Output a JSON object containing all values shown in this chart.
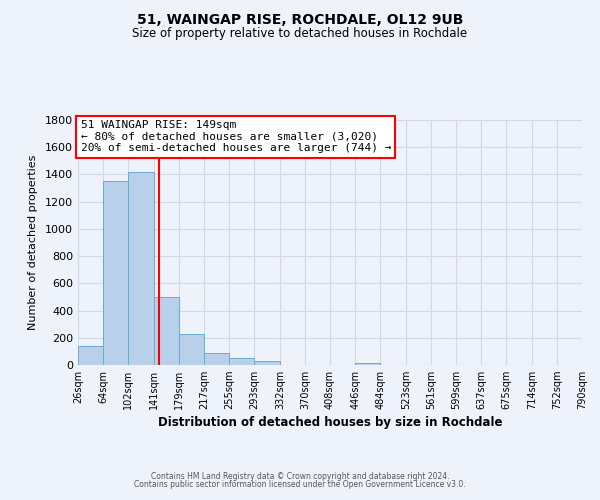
{
  "title": "51, WAINGAP RISE, ROCHDALE, OL12 9UB",
  "subtitle": "Size of property relative to detached houses in Rochdale",
  "xlabel": "Distribution of detached houses by size in Rochdale",
  "ylabel": "Number of detached properties",
  "bin_edges": [
    26,
    64,
    102,
    141,
    179,
    217,
    255,
    293,
    332,
    370,
    408,
    446,
    484,
    523,
    561,
    599,
    637,
    675,
    714,
    752,
    790
  ],
  "bar_heights": [
    140,
    1355,
    1415,
    500,
    230,
    85,
    50,
    30,
    0,
    0,
    0,
    15,
    0,
    0,
    0,
    0,
    0,
    0,
    0,
    0
  ],
  "bar_color": "#b8d0ea",
  "bar_edge_color": "#6aaad4",
  "vertical_line_x": 149,
  "vertical_line_color": "red",
  "annotation_line1": "51 WAINGAP RISE: 149sqm",
  "annotation_line2": "← 80% of detached houses are smaller (3,020)",
  "annotation_line3": "20% of semi-detached houses are larger (744) →",
  "ylim": [
    0,
    1800
  ],
  "yticks": [
    0,
    200,
    400,
    600,
    800,
    1000,
    1200,
    1400,
    1600,
    1800
  ],
  "tick_labels": [
    "26sqm",
    "64sqm",
    "102sqm",
    "141sqm",
    "179sqm",
    "217sqm",
    "255sqm",
    "293sqm",
    "332sqm",
    "370sqm",
    "408sqm",
    "446sqm",
    "484sqm",
    "523sqm",
    "561sqm",
    "599sqm",
    "637sqm",
    "675sqm",
    "714sqm",
    "752sqm",
    "790sqm"
  ],
  "background_color": "#eef3fb",
  "grid_color": "#d0d8e8",
  "footer_line1": "Contains HM Land Registry data © Crown copyright and database right 2024.",
  "footer_line2": "Contains public sector information licensed under the Open Government Licence v3.0."
}
